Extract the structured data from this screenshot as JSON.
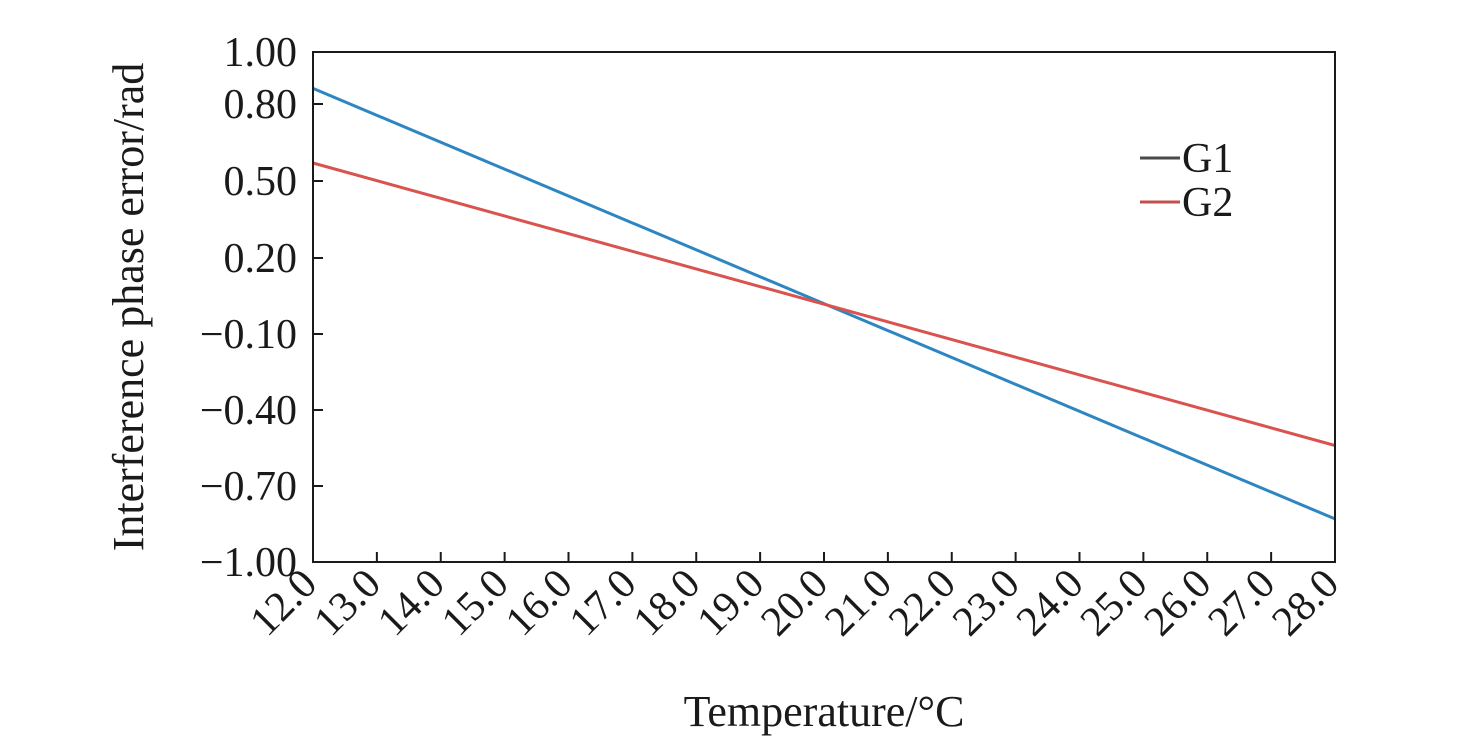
{
  "chart_data": {
    "type": "line",
    "title": "",
    "xlabel": "Temperature/°C",
    "ylabel": "Interference phase error/rad",
    "x": [
      12,
      13,
      14,
      15,
      16,
      17,
      18,
      19,
      20,
      21,
      22,
      23,
      24,
      25,
      26,
      27,
      28
    ],
    "x_tick_labels": [
      "12.0",
      "13.0",
      "14.0",
      "15.0",
      "16.0",
      "17.0",
      "18.0",
      "19.0",
      "20.0",
      "21.0",
      "22.0",
      "23.0",
      "24.0",
      "25.0",
      "26.0",
      "27.0",
      "28.0"
    ],
    "y_ticks": [
      1.0,
      0.8,
      0.5,
      0.2,
      -0.1,
      -0.4,
      -0.7,
      -1.0
    ],
    "y_tick_labels": [
      "1.00",
      "0.80",
      "0.50",
      "0.20",
      "−0.10",
      "−0.40",
      "−0.70",
      "−1.00"
    ],
    "xlim": [
      12,
      28
    ],
    "ylim": [
      -1.0,
      1.0
    ],
    "y_scale_note": "tick spacing is uneven between 1.00 and 0.80; plotted with piecewise-linear mapping through tick labels",
    "grid": false,
    "legend_position": "top-right",
    "series": [
      {
        "name": "G1",
        "color": "#2e86c1",
        "legend_color": "#4a4a4a",
        "x": [
          12,
          28
        ],
        "y": [
          0.86,
          -0.83
        ]
      },
      {
        "name": "G2",
        "color": "#d9534f",
        "legend_color": "#c0504d",
        "x": [
          12,
          28
        ],
        "y": [
          0.57,
          -0.54
        ]
      }
    ]
  }
}
